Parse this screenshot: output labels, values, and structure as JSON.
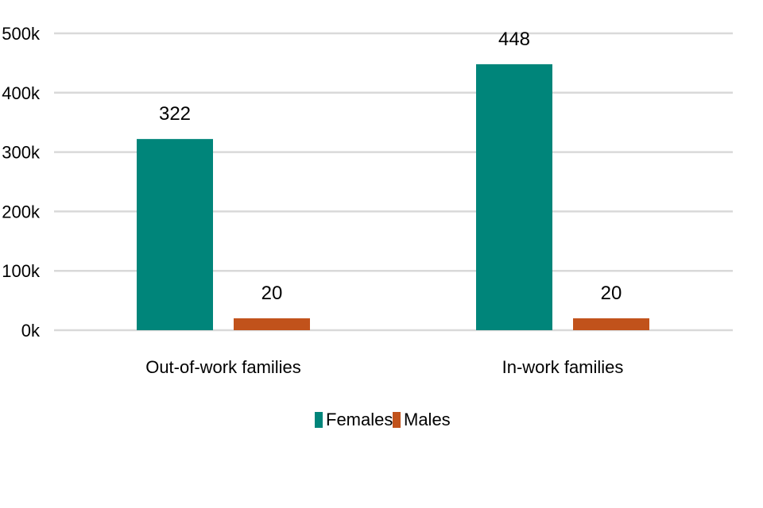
{
  "chart_data": {
    "type": "bar",
    "title": "",
    "xlabel": "",
    "ylabel": "",
    "categories": [
      "Out-of-work families",
      "In-work families"
    ],
    "series": [
      {
        "name": "Females",
        "values": [
          322,
          448
        ],
        "color": "#00857a"
      },
      {
        "name": "Males",
        "values": [
          20,
          20
        ],
        "color": "#c1521b"
      }
    ],
    "ylim": [
      0,
      500
    ],
    "yticks": [
      0,
      100,
      200,
      300,
      400,
      500
    ],
    "ytick_labels": [
      "0k",
      "100k",
      "200k",
      "300k",
      "400k",
      "500k"
    ],
    "data_labels": [
      [
        "322",
        "448"
      ],
      [
        "20",
        "20"
      ]
    ],
    "grid": true,
    "legend": "bottom-center"
  }
}
